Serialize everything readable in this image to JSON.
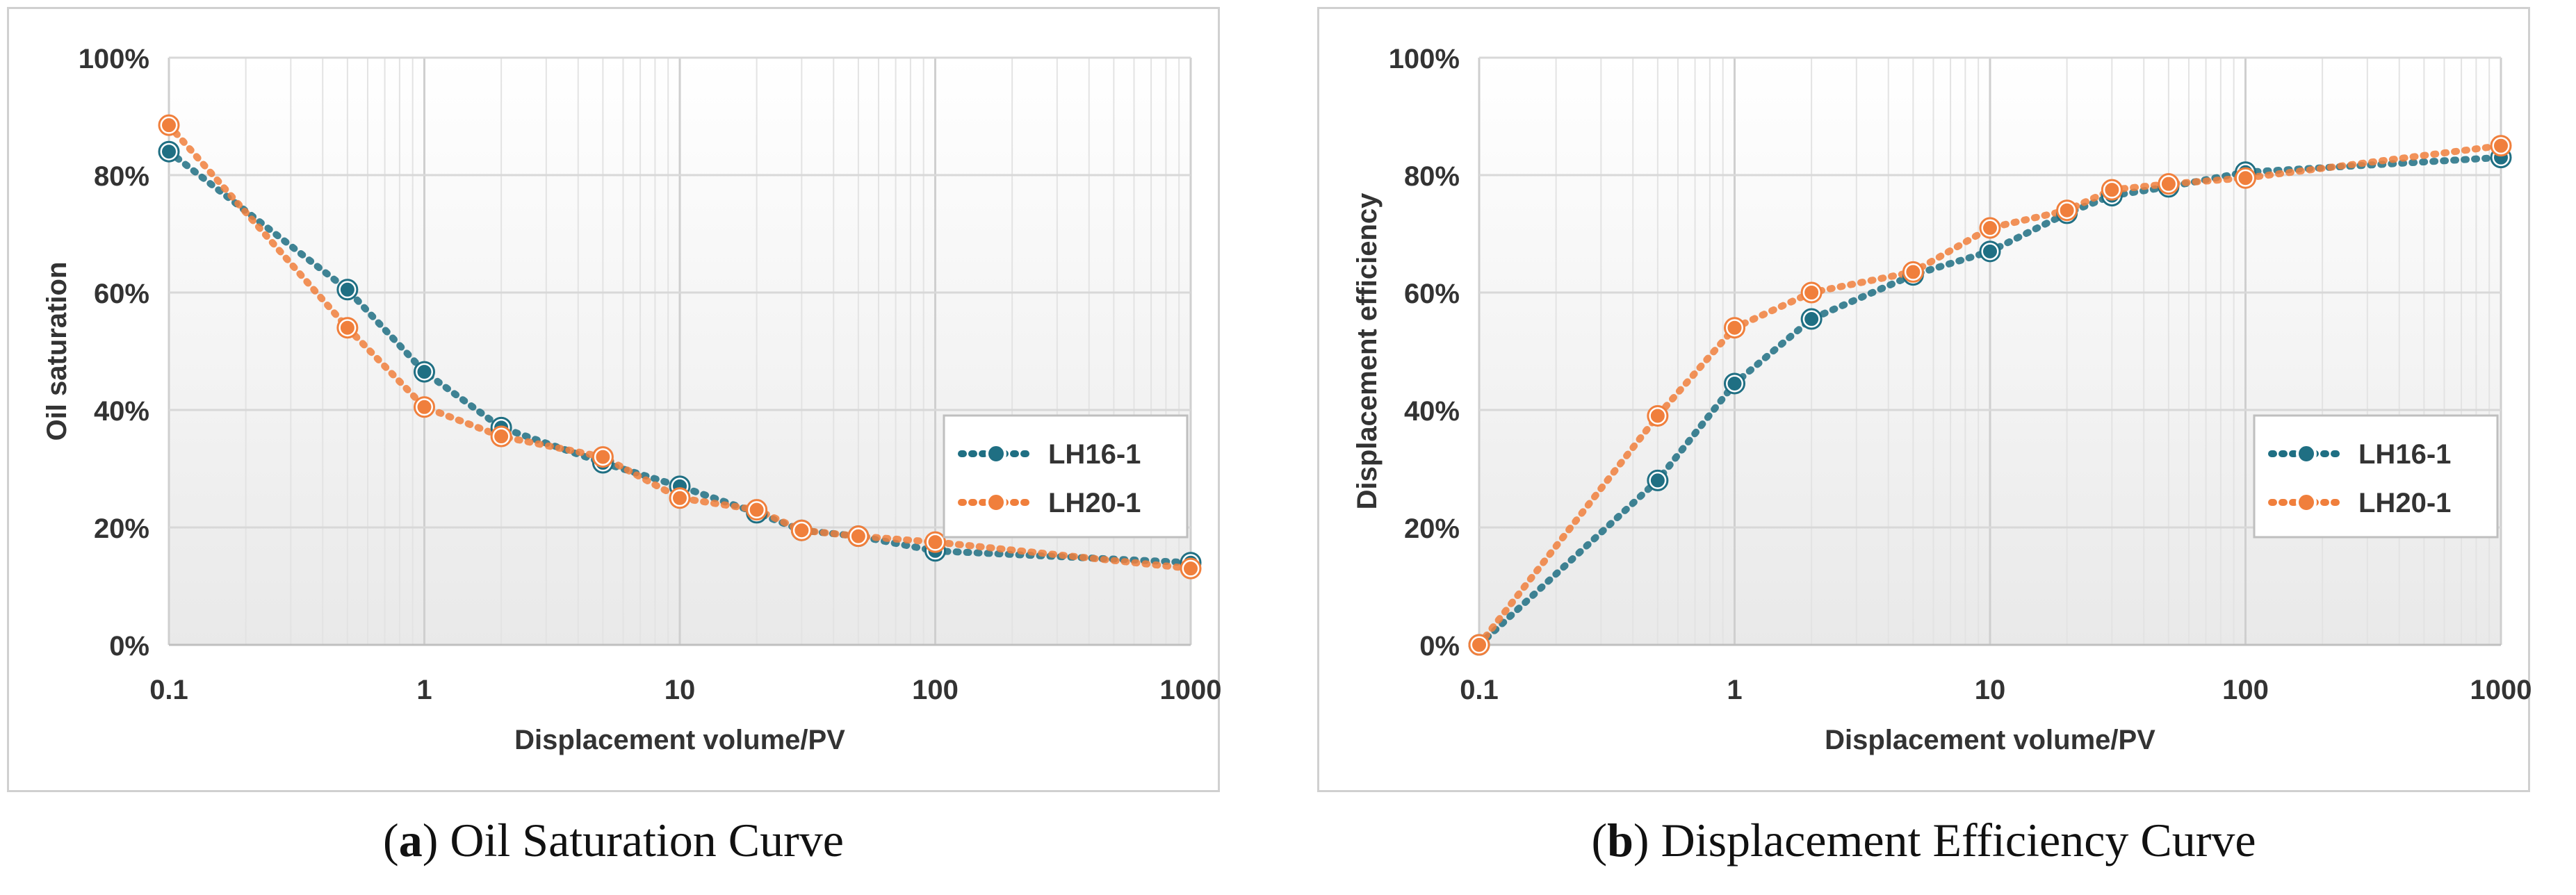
{
  "chart_data": [
    {
      "type": "line",
      "title": "",
      "xlabel": "Displacement volume/PV",
      "ylabel": "Oil saturation",
      "xscale": "log",
      "xlim": [
        0.1,
        1000
      ],
      "ylim": [
        0,
        100
      ],
      "x_ticks": [
        "0.1",
        "1",
        "10",
        "100",
        "1000"
      ],
      "y_ticks": [
        "0%",
        "20%",
        "40%",
        "60%",
        "80%",
        "100%"
      ],
      "grid": true,
      "legend": "right",
      "series": [
        {
          "name": "LH16-1",
          "color": "#1f6f83",
          "x": [
            0.1,
            0.5,
            1,
            2,
            5,
            10,
            20,
            30,
            50,
            100,
            1000
          ],
          "y": [
            84,
            60.5,
            46.5,
            37,
            31,
            27,
            22.5,
            19.5,
            18.5,
            16,
            14
          ]
        },
        {
          "name": "LH20-1",
          "color": "#f07f3c",
          "x": [
            0.1,
            0.5,
            1,
            2,
            5,
            10,
            20,
            30,
            50,
            100,
            1000
          ],
          "y": [
            88.5,
            54,
            40.5,
            35.5,
            32,
            25,
            23,
            19.5,
            18.5,
            17.5,
            13
          ]
        }
      ]
    },
    {
      "type": "line",
      "title": "",
      "xlabel": "Displacement volume/PV",
      "ylabel": "Displacement efficiency",
      "xscale": "log",
      "xlim": [
        0.1,
        1000
      ],
      "ylim": [
        0,
        100
      ],
      "x_ticks": [
        "0.1",
        "1",
        "10",
        "100",
        "1000"
      ],
      "y_ticks": [
        "0%",
        "20%",
        "40%",
        "60%",
        "80%",
        "100%"
      ],
      "grid": true,
      "legend": "right",
      "series": [
        {
          "name": "LH16-1",
          "color": "#1f6f83",
          "x": [
            0.1,
            0.5,
            1,
            2,
            5,
            10,
            20,
            30,
            50,
            100,
            1000
          ],
          "y": [
            0,
            28,
            44.5,
            55.5,
            63,
            67,
            73.5,
            76.5,
            78,
            80.5,
            83
          ]
        },
        {
          "name": "LH20-1",
          "color": "#f07f3c",
          "x": [
            0.1,
            0.5,
            1,
            2,
            5,
            10,
            20,
            30,
            50,
            100,
            1000
          ],
          "y": [
            0,
            39,
            54,
            60,
            63.5,
            71,
            74,
            77.5,
            78.5,
            79.5,
            85
          ]
        }
      ]
    }
  ],
  "captions": [
    {
      "letter": "a",
      "text": " Oil Saturation Curve"
    },
    {
      "letter": "b",
      "text": " Displacement Efficiency Curve"
    }
  ]
}
